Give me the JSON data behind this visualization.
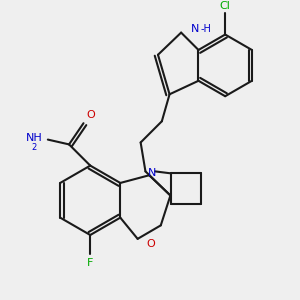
{
  "background_color": "#efefef",
  "bond_color": "#1a1a1a",
  "atom_colors": {
    "N": "#0000cc",
    "O": "#cc0000",
    "F": "#00aa00",
    "Cl": "#00aa00",
    "NH": "#4444bb"
  }
}
